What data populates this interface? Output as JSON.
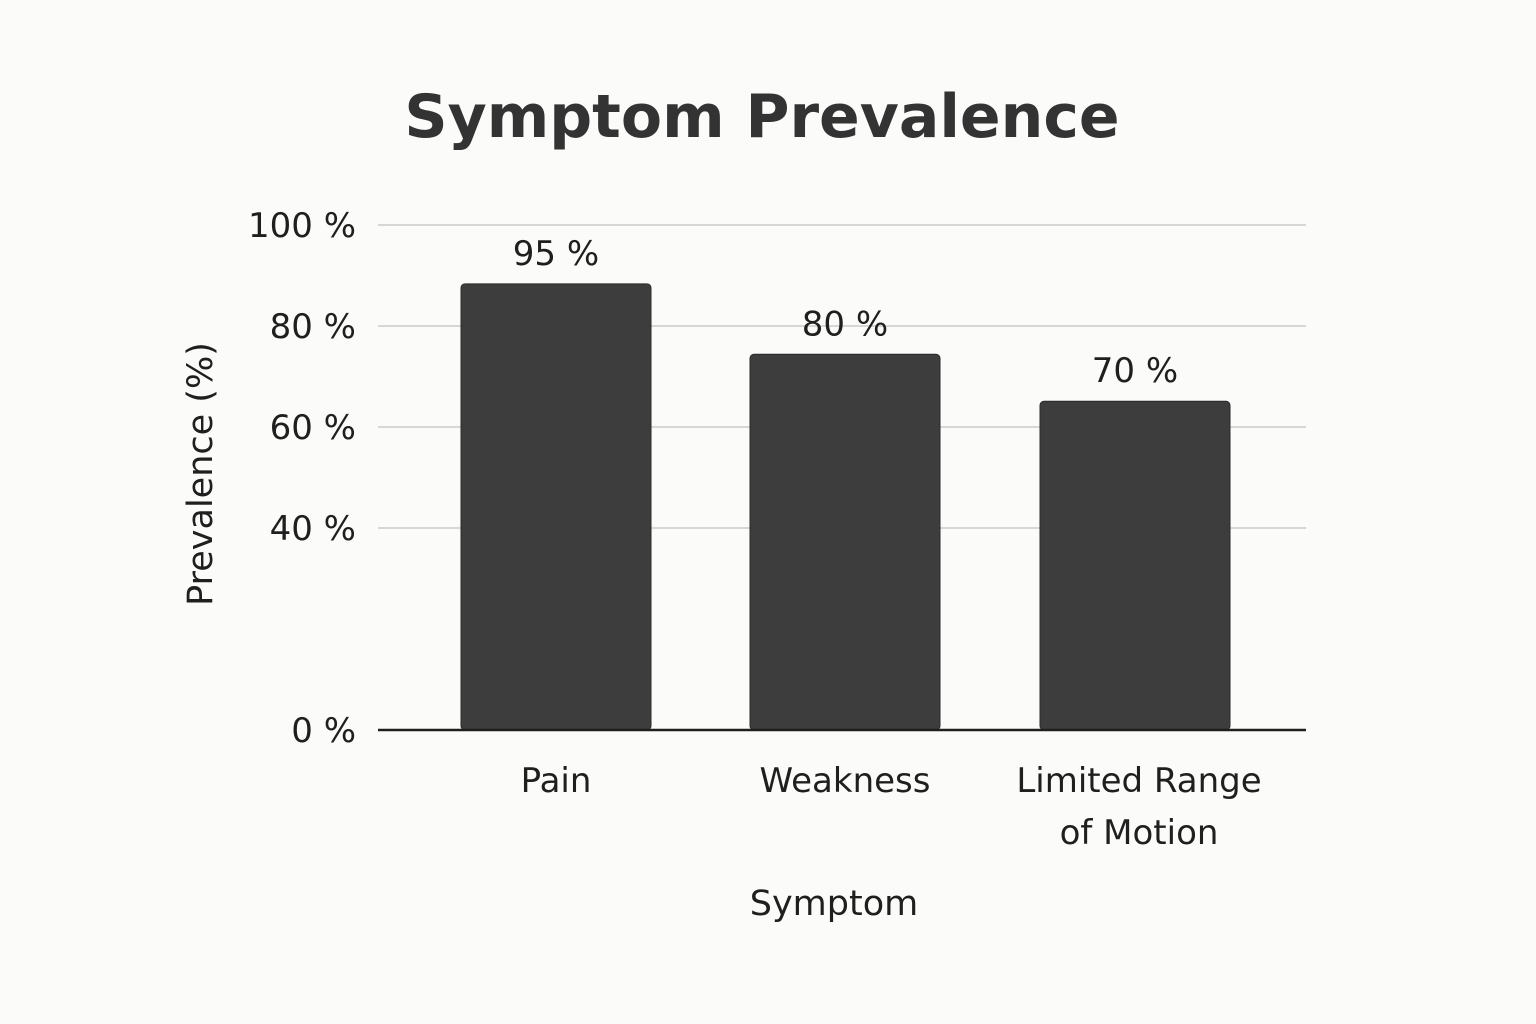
{
  "chart_data": {
    "type": "bar",
    "title": "Symptom Prevalence",
    "xlabel": "Symptom",
    "ylabel": "Prevalence (%)",
    "categories": [
      "Pain",
      "Weakness",
      "Limited Range of Motion"
    ],
    "category_lines": [
      [
        "Pain"
      ],
      [
        "Weakness"
      ],
      [
        "Limited Range",
        "of Motion"
      ]
    ],
    "values": [
      95,
      80,
      70
    ],
    "data_labels": [
      "95 %",
      "80 %",
      "70 %"
    ],
    "y_ticks": [
      0,
      40,
      60,
      80,
      100
    ],
    "y_tick_labels": [
      "0 %",
      "40 %",
      "60 %",
      "80 %",
      "100 %"
    ],
    "ylim": [
      0,
      100
    ],
    "grid": true,
    "legend": "none",
    "colors": {
      "bar": "#3d3d3d",
      "background": "#fbfbf9",
      "grid": "#d7d7d5",
      "text": "#1f1f1f",
      "title": "#333333"
    }
  }
}
